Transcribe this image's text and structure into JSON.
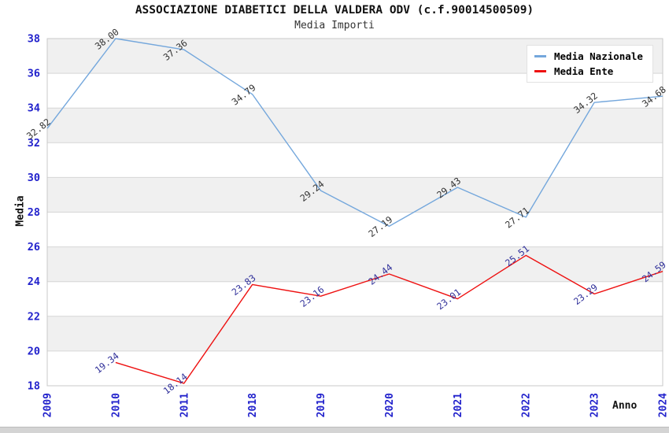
{
  "title": "ASSOCIAZIONE DIABETICI DELLA VALDERA ODV (c.f.90014500509)",
  "subtitle": "Media Importi",
  "colors": {
    "background": "#ffffff",
    "band_fill": "#f0f0f0",
    "grid_line": "#d6d6d6",
    "plot_border": "#c9c9c9",
    "axis_tick_label": "#2222cc",
    "axis_title": "#111111",
    "series_nazionale": "#74a7dc",
    "series_ente": "#ee1111",
    "value_label_nazionale": "#333333",
    "value_label_ente": "#30309a",
    "legend_text": "#000000"
  },
  "legend": {
    "items": [
      {
        "label": "Media Nazionale",
        "color": "#74a7dc"
      },
      {
        "label": "Media Ente",
        "color": "#ee1111"
      }
    ]
  },
  "chart_data": {
    "type": "line",
    "x": [
      "2009",
      "2010",
      "2011",
      "2018",
      "2019",
      "2020",
      "2021",
      "2022",
      "2023",
      "2024"
    ],
    "series": [
      {
        "id": "media-nazionale",
        "name": "Media Nazionale",
        "color": "#74a7dc",
        "label_color": "#333333",
        "values": [
          32.82,
          38.0,
          37.36,
          34.79,
          29.24,
          27.19,
          29.43,
          27.71,
          34.32,
          34.68
        ]
      },
      {
        "id": "media-ente",
        "name": "Media Ente",
        "color": "#ee1111",
        "label_color": "#30309a",
        "values": [
          null,
          19.34,
          18.14,
          23.83,
          23.16,
          24.44,
          23.01,
          25.51,
          23.29,
          24.59
        ]
      }
    ],
    "title": "ASSOCIAZIONE DIABETICI DELLA VALDERA ODV (c.f.90014500509)",
    "subtitle": "Media Importi",
    "xlabel": "Anno",
    "ylabel": "Media",
    "ylim": [
      18,
      38
    ],
    "ytick_step": 2,
    "grid": true,
    "banded_background": true,
    "legend_position": "top-right",
    "value_labels_rotation_deg": -38
  }
}
